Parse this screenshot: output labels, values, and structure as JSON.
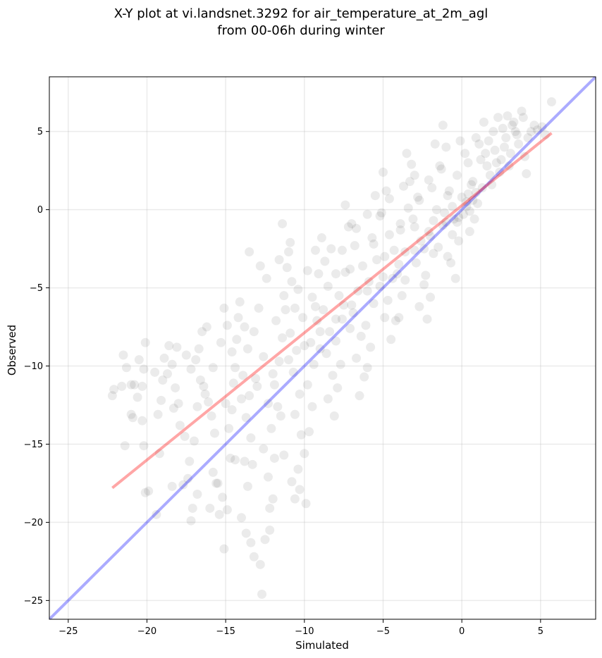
{
  "chart_data": {
    "type": "scatter",
    "title_line1": "X-Y plot at vi.landsnet.3292 for air_temperature_at_2m_agl",
    "title_line2": "from 00-06h during winter",
    "xlabel": "Simulated",
    "ylabel": "Observed",
    "xlim": [
      -26.2,
      8.5
    ],
    "ylim": [
      -26.2,
      8.5
    ],
    "xticks": [
      -25,
      -20,
      -15,
      -10,
      -5,
      0,
      5
    ],
    "yticks": [
      -25,
      -20,
      -15,
      -10,
      -5,
      0,
      5
    ],
    "xtick_labels": [
      "−25",
      "−20",
      "−15",
      "−10",
      "−5",
      "0",
      "5"
    ],
    "ytick_labels": [
      "−25",
      "−20",
      "−15",
      "−10",
      "−5",
      "0",
      "5"
    ],
    "grid": true,
    "colors": {
      "points": "#000000",
      "identity": "#0000ff",
      "fit": "#ff0000"
    },
    "point_alpha": 0.08,
    "identity_line": {
      "x": [
        -26.2,
        8.5
      ],
      "y": [
        -26.2,
        8.5
      ]
    },
    "fit_line": {
      "x": [
        -22.2,
        5.7
      ],
      "y": [
        -17.8,
        4.9
      ]
    },
    "points": [
      [
        -22.2,
        -11.9
      ],
      [
        -22.1,
        -11.5
      ],
      [
        -21.6,
        -11.3
      ],
      [
        -21.5,
        -9.3
      ],
      [
        -21.3,
        -10.1
      ],
      [
        -21.0,
        -11.2
      ],
      [
        -20.8,
        -11.2
      ],
      [
        -20.5,
        -9.6
      ],
      [
        -20.1,
        -8.5
      ],
      [
        -20.2,
        -10.2
      ],
      [
        -20.3,
        -11.3
      ],
      [
        -20.2,
        -15.1
      ],
      [
        -21.4,
        -15.1
      ],
      [
        -21.0,
        -13.1
      ],
      [
        -20.9,
        -13.3
      ],
      [
        -20.3,
        -13.5
      ],
      [
        -19.9,
        -18.0
      ],
      [
        -20.1,
        -18.1
      ],
      [
        -19.4,
        -19.5
      ],
      [
        -19.2,
        -15.6
      ],
      [
        -19.3,
        -13.1
      ],
      [
        -19.1,
        -12.2
      ],
      [
        -19.0,
        -10.9
      ],
      [
        -18.7,
        -10.5
      ],
      [
        -18.9,
        -9.5
      ],
      [
        -18.6,
        -8.7
      ],
      [
        -18.4,
        -9.9
      ],
      [
        -18.2,
        -11.4
      ],
      [
        -18.0,
        -12.4
      ],
      [
        -18.3,
        -12.7
      ],
      [
        -17.9,
        -13.8
      ],
      [
        -17.6,
        -14.5
      ],
      [
        -18.4,
        -17.7
      ],
      [
        -17.7,
        -17.6
      ],
      [
        -17.4,
        -17.2
      ],
      [
        -17.1,
        -19.1
      ],
      [
        -17.2,
        -19.9
      ],
      [
        -17.3,
        -16.1
      ],
      [
        -17.0,
        -14.8
      ],
      [
        -16.8,
        -12.6
      ],
      [
        -17.2,
        -10.2
      ],
      [
        -16.9,
        -9.6
      ],
      [
        -16.7,
        -8.9
      ],
      [
        -16.5,
        -7.8
      ],
      [
        -16.2,
        -7.5
      ],
      [
        -16.6,
        -10.9
      ],
      [
        -16.3,
        -11.8
      ],
      [
        -16.1,
        -12.3
      ],
      [
        -15.9,
        -13.2
      ],
      [
        -15.7,
        -14.3
      ],
      [
        -15.8,
        -16.8
      ],
      [
        -15.5,
        -17.5
      ],
      [
        -16.0,
        -19.1
      ],
      [
        -15.4,
        -19.5
      ],
      [
        -15.2,
        -18.4
      ],
      [
        -15.1,
        -21.7
      ],
      [
        -14.9,
        -19.2
      ],
      [
        -14.7,
        -15.9
      ],
      [
        -14.8,
        -14.0
      ],
      [
        -14.6,
        -12.8
      ],
      [
        -14.5,
        -11.1
      ],
      [
        -14.4,
        -10.1
      ],
      [
        -14.6,
        -9.1
      ],
      [
        -14.3,
        -8.3
      ],
      [
        -14.9,
        -7.4
      ],
      [
        -15.1,
        -6.3
      ],
      [
        -14.1,
        -5.9
      ],
      [
        -13.8,
        -7.5
      ],
      [
        -13.6,
        -8.9
      ],
      [
        -13.9,
        -10.6
      ],
      [
        -13.5,
        -11.9
      ],
      [
        -13.7,
        -13.3
      ],
      [
        -13.4,
        -14.6
      ],
      [
        -13.8,
        -16.1
      ],
      [
        -13.6,
        -17.7
      ],
      [
        -14.0,
        -19.7
      ],
      [
        -13.7,
        -20.7
      ],
      [
        -13.4,
        -21.3
      ],
      [
        -13.2,
        -22.2
      ],
      [
        -12.8,
        -22.7
      ],
      [
        -12.7,
        -24.6
      ],
      [
        -12.5,
        -21.1
      ],
      [
        -12.2,
        -20.5
      ],
      [
        -12.0,
        -18.5
      ],
      [
        -12.3,
        -17.1
      ],
      [
        -11.9,
        -15.9
      ],
      [
        -12.1,
        -14.0
      ],
      [
        -11.7,
        -12.6
      ],
      [
        -11.9,
        -11.2
      ],
      [
        -11.6,
        -9.7
      ],
      [
        -11.4,
        -8.2
      ],
      [
        -11.8,
        -7.1
      ],
      [
        -11.3,
        -5.5
      ],
      [
        -11.1,
        -3.7
      ],
      [
        -11.4,
        -0.9
      ],
      [
        -11.0,
        -2.7
      ],
      [
        -10.8,
        -4.6
      ],
      [
        -10.6,
        -6.3
      ],
      [
        -10.9,
        -7.9
      ],
      [
        -10.5,
        -9.0
      ],
      [
        -10.7,
        -10.4
      ],
      [
        -10.3,
        -11.8
      ],
      [
        -10.6,
        -13.1
      ],
      [
        -10.2,
        -14.4
      ],
      [
        -10.4,
        -16.6
      ],
      [
        -10.0,
        -15.6
      ],
      [
        -10.3,
        -17.9
      ],
      [
        -10.6,
        -18.5
      ],
      [
        -9.9,
        -18.8
      ],
      [
        -9.7,
        -14.2
      ],
      [
        -9.5,
        -12.6
      ],
      [
        -9.8,
        -11.2
      ],
      [
        -9.4,
        -9.9
      ],
      [
        -9.6,
        -8.5
      ],
      [
        -9.2,
        -7.1
      ],
      [
        -9.5,
        -5.6
      ],
      [
        -9.1,
        -4.1
      ],
      [
        -9.3,
        -2.6
      ],
      [
        -8.9,
        -1.8
      ],
      [
        -8.7,
        -3.3
      ],
      [
        -8.5,
        -4.9
      ],
      [
        -8.8,
        -6.4
      ],
      [
        -8.4,
        -7.8
      ],
      [
        -8.6,
        -9.2
      ],
      [
        -8.2,
        -10.6
      ],
      [
        -8.5,
        -12.1
      ],
      [
        -8.1,
        -13.2
      ],
      [
        -7.9,
        -11.4
      ],
      [
        -7.7,
        -9.9
      ],
      [
        -8.0,
        -8.4
      ],
      [
        -7.6,
        -7.0
      ],
      [
        -7.8,
        -5.5
      ],
      [
        -7.4,
        -4.0
      ],
      [
        -7.6,
        -2.6
      ],
      [
        -7.2,
        -1.1
      ],
      [
        -7.4,
        0.3
      ],
      [
        -7.0,
        -0.9
      ],
      [
        -6.8,
        -2.3
      ],
      [
        -7.1,
        -3.8
      ],
      [
        -6.6,
        -5.2
      ],
      [
        -6.9,
        -6.6
      ],
      [
        -6.4,
        -8.1
      ],
      [
        -6.7,
        -9.5
      ],
      [
        -6.2,
        -10.7
      ],
      [
        -6.5,
        -11.9
      ],
      [
        -6.0,
        -10.1
      ],
      [
        -5.8,
        -8.8
      ],
      [
        -6.1,
        -7.4
      ],
      [
        -5.6,
        -6.0
      ],
      [
        -5.9,
        -4.6
      ],
      [
        -5.4,
        -3.2
      ],
      [
        -5.7,
        -1.8
      ],
      [
        -5.2,
        -0.4
      ],
      [
        -5.5,
        0.9
      ],
      [
        -5.0,
        2.4
      ],
      [
        -4.8,
        1.2
      ],
      [
        -5.1,
        -0.2
      ],
      [
        -4.6,
        -1.6
      ],
      [
        -4.9,
        -3.0
      ],
      [
        -4.4,
        -4.4
      ],
      [
        -4.7,
        -5.8
      ],
      [
        -4.2,
        -7.1
      ],
      [
        -4.5,
        -8.3
      ],
      [
        -4.0,
        -6.9
      ],
      [
        -3.8,
        -5.5
      ],
      [
        -4.1,
        -4.1
      ],
      [
        -3.6,
        -2.7
      ],
      [
        -3.9,
        -1.3
      ],
      [
        -3.4,
        0.1
      ],
      [
        -3.7,
        1.5
      ],
      [
        -3.2,
        2.9
      ],
      [
        -3.5,
        3.6
      ],
      [
        -3.0,
        2.2
      ],
      [
        -2.8,
        0.8
      ],
      [
        -3.1,
        -0.6
      ],
      [
        -2.6,
        -2.0
      ],
      [
        -2.9,
        -3.4
      ],
      [
        -2.4,
        -4.8
      ],
      [
        -2.7,
        -6.2
      ],
      [
        -2.2,
        -7.0
      ],
      [
        -2.0,
        -5.6
      ],
      [
        -2.3,
        -4.2
      ],
      [
        -1.8,
        -2.8
      ],
      [
        -2.1,
        -1.4
      ],
      [
        -1.6,
        0.0
      ],
      [
        -1.9,
        1.4
      ],
      [
        -1.4,
        2.8
      ],
      [
        -1.7,
        4.2
      ],
      [
        -1.2,
        5.4
      ],
      [
        -1.0,
        4.0
      ],
      [
        -1.3,
        2.6
      ],
      [
        -0.8,
        1.2
      ],
      [
        -1.1,
        -0.2
      ],
      [
        -0.6,
        -1.6
      ],
      [
        -0.9,
        -3.0
      ],
      [
        -0.4,
        -4.4
      ],
      [
        -0.7,
        -3.4
      ],
      [
        -0.2,
        -2.0
      ],
      [
        -0.5,
        -0.6
      ],
      [
        0.0,
        0.8
      ],
      [
        -0.3,
        2.2
      ],
      [
        0.2,
        3.6
      ],
      [
        -0.1,
        4.4
      ],
      [
        0.4,
        3.0
      ],
      [
        0.6,
        1.6
      ],
      [
        0.3,
        0.2
      ],
      [
        0.8,
        -0.6
      ],
      [
        0.5,
        -1.4
      ],
      [
        1.0,
        0.4
      ],
      [
        0.7,
        1.8
      ],
      [
        1.2,
        3.2
      ],
      [
        0.9,
        4.6
      ],
      [
        1.4,
        5.6
      ],
      [
        1.1,
        4.2
      ],
      [
        1.6,
        2.8
      ],
      [
        1.3,
        1.4
      ],
      [
        1.8,
        2.2
      ],
      [
        1.5,
        3.6
      ],
      [
        2.0,
        5.0
      ],
      [
        1.7,
        4.4
      ],
      [
        2.2,
        3.0
      ],
      [
        1.9,
        1.6
      ],
      [
        2.4,
        2.4
      ],
      [
        2.1,
        3.8
      ],
      [
        2.6,
        5.2
      ],
      [
        2.3,
        5.9
      ],
      [
        2.8,
        4.6
      ],
      [
        2.5,
        3.2
      ],
      [
        3.0,
        2.8
      ],
      [
        2.7,
        4.0
      ],
      [
        3.2,
        5.4
      ],
      [
        2.9,
        6.0
      ],
      [
        3.4,
        5.0
      ],
      [
        3.1,
        3.6
      ],
      [
        3.6,
        4.2
      ],
      [
        3.3,
        5.6
      ],
      [
        3.8,
        6.3
      ],
      [
        3.5,
        4.8
      ],
      [
        4.0,
        3.4
      ],
      [
        4.2,
        4.6
      ],
      [
        3.9,
        5.9
      ],
      [
        4.4,
        5.0
      ],
      [
        4.1,
        2.3
      ],
      [
        4.6,
        5.4
      ],
      [
        4.8,
        5.1
      ],
      [
        5.1,
        5.3
      ],
      [
        5.3,
        4.8
      ],
      [
        5.7,
        6.9
      ],
      [
        -12.8,
        -3.6
      ],
      [
        -13.5,
        -2.7
      ],
      [
        -12.4,
        -4.4
      ],
      [
        -12.9,
        -6.3
      ],
      [
        -13.2,
        -7.8
      ],
      [
        -12.6,
        -9.4
      ],
      [
        -13.1,
        -10.8
      ],
      [
        -12.3,
        -12.4
      ],
      [
        -11.6,
        -3.2
      ],
      [
        -11.2,
        -6.4
      ],
      [
        -10.9,
        -2.1
      ],
      [
        -10.4,
        -5.1
      ],
      [
        -10.1,
        -6.9
      ],
      [
        -9.8,
        -3.9
      ],
      [
        -9.3,
        -6.2
      ],
      [
        -9.0,
        -8.9
      ],
      [
        -8.3,
        -2.5
      ],
      [
        -8.0,
        -4.1
      ],
      [
        -7.5,
        -6.1
      ],
      [
        -7.1,
        -7.6
      ],
      [
        -6.7,
        -1.2
      ],
      [
        -6.3,
        -3.6
      ],
      [
        -6.0,
        -0.3
      ],
      [
        -5.6,
        -2.2
      ],
      [
        -5.2,
        -4.9
      ],
      [
        -4.9,
        -6.9
      ],
      [
        -4.6,
        0.7
      ],
      [
        -4.3,
        -2.6
      ],
      [
        -3.9,
        -0.9
      ],
      [
        -3.6,
        -4.5
      ],
      [
        -3.3,
        1.8
      ],
      [
        -3.0,
        -1.1
      ],
      [
        -2.7,
        0.6
      ],
      [
        -2.4,
        -2.5
      ],
      [
        -2.1,
        1.9
      ],
      [
        -1.8,
        -0.7
      ],
      [
        -1.5,
        -2.4
      ],
      [
        -1.2,
        -1.0
      ],
      [
        -0.9,
        0.9
      ],
      [
        -0.6,
        0.2
      ],
      [
        -0.3,
        -0.8
      ],
      [
        0.1,
        -0.3
      ],
      [
        0.3,
        0.5
      ],
      [
        0.5,
        -0.1
      ],
      [
        0.7,
        0.6
      ],
      [
        0.9,
        1.1
      ],
      [
        -0.2,
        -0.5
      ],
      [
        0.4,
        1.0
      ],
      [
        -14.2,
        -6.9
      ],
      [
        -15.3,
        -8.5
      ],
      [
        -15.8,
        -10.1
      ],
      [
        -16.4,
        -11.3
      ],
      [
        -17.5,
        -9.3
      ],
      [
        -18.1,
        -8.8
      ],
      [
        -19.5,
        -10.4
      ],
      [
        -20.6,
        -12.0
      ],
      [
        -15.0,
        -12.4
      ],
      [
        -14.0,
        -12.1
      ],
      [
        -13.0,
        -11.3
      ],
      [
        -12.0,
        -10.5
      ],
      [
        -11.0,
        -9.6
      ],
      [
        -10.0,
        -8.7
      ],
      [
        -9.0,
        -7.8
      ],
      [
        -8.0,
        -7.0
      ],
      [
        -7.0,
        -6.1
      ],
      [
        -6.0,
        -5.2
      ],
      [
        -5.0,
        -4.3
      ],
      [
        -4.0,
        -3.5
      ],
      [
        -3.0,
        -2.6
      ],
      [
        -2.0,
        -1.7
      ],
      [
        -1.0,
        -0.8
      ],
      [
        -11.5,
        -13.2
      ],
      [
        -12.6,
        -15.3
      ],
      [
        -11.3,
        -15.7
      ],
      [
        -10.8,
        -17.4
      ],
      [
        -13.3,
        -16.3
      ],
      [
        -14.4,
        -16.0
      ],
      [
        -15.6,
        -17.5
      ],
      [
        -16.8,
        -18.2
      ],
      [
        -12.2,
        -19.1
      ]
    ]
  }
}
